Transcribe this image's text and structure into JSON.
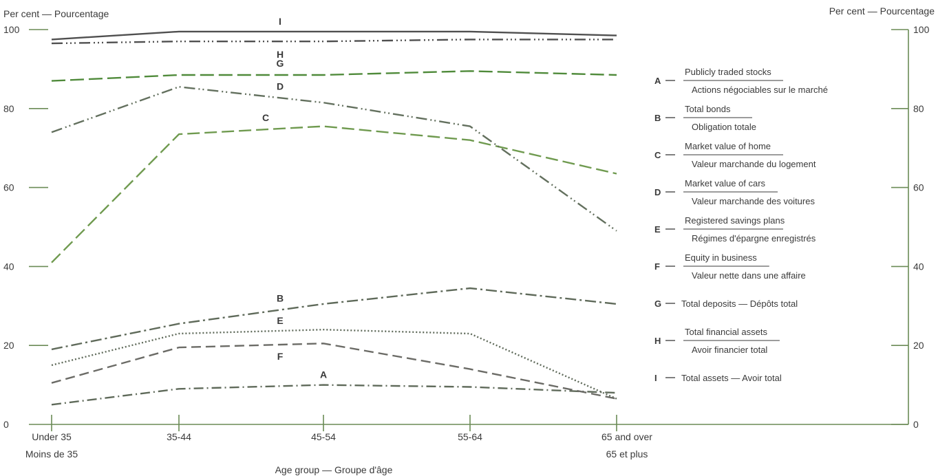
{
  "chart_data": {
    "type": "line",
    "ylabel_left": "Per cent — Pourcentage",
    "ylabel_right": "Per cent — Pourcentage",
    "xlabel": "Age group — Groupe d'âge",
    "categories": [
      {
        "line1": "Under 35",
        "line2": "Moins de 35"
      },
      {
        "line1": "35-44",
        "line2": ""
      },
      {
        "line1": "45-54",
        "line2": ""
      },
      {
        "line1": "55-64",
        "line2": ""
      },
      {
        "line1": "65 and over",
        "line2": "65 et plus"
      }
    ],
    "ylim": [
      0,
      100
    ],
    "yticks": [
      0,
      20,
      40,
      60,
      80,
      100
    ],
    "grid": false,
    "series": [
      {
        "key": "A",
        "values": [
          5,
          9,
          10,
          9.5,
          8
        ],
        "color": "#5f6a5a",
        "dash": "14,5,2,5",
        "label_index": 2,
        "label_offset": -10
      },
      {
        "key": "B",
        "values": [
          19,
          25.5,
          30.5,
          34.5,
          30.5
        ],
        "color": "#5f6a5a",
        "dash": "16,5,3,5",
        "label_index": 1.7,
        "label_offset": -12
      },
      {
        "key": "C",
        "values": [
          41,
          73.5,
          75.5,
          72,
          63.5
        ],
        "color": "#6f9a4f",
        "dash": "18,7",
        "label_index": 1.6,
        "label_offset": -12
      },
      {
        "key": "D",
        "values": [
          74,
          85.5,
          81.5,
          75.5,
          49
        ],
        "color": "#63705e",
        "dash": "16,5,2,4,2,5",
        "label_index": 1.7,
        "label_offset": -12
      },
      {
        "key": "E",
        "values": [
          15,
          23,
          24,
          23,
          6.5
        ],
        "color": "#5f6a5a",
        "dash": "2,3",
        "label_index": 1.7,
        "label_offset": -10
      },
      {
        "key": "F",
        "values": [
          10.5,
          19.5,
          20.5,
          14,
          6.5
        ],
        "color": "#6b6b66",
        "dash": "14,7",
        "label_index": 1.7,
        "label_offset": 22
      },
      {
        "key": "G",
        "values": [
          87,
          88.5,
          88.5,
          89.5,
          88.5
        ],
        "color": "#4f8a3a",
        "dash": "20,7",
        "label_index": 1.7,
        "label_offset": -12
      },
      {
        "key": "H",
        "values": [
          96.5,
          97,
          97,
          97.5,
          97.5
        ],
        "color": "#4f4f4f",
        "dash": "16,5,2,4,2,4,2,5",
        "label_index": 1.7,
        "label_offset": 24
      },
      {
        "key": "I",
        "values": [
          97.5,
          99.5,
          99.5,
          99.5,
          98.5
        ],
        "color": "#4f4f4f",
        "dash": "",
        "label_index": 1.7,
        "label_offset": -10
      }
    ],
    "legend": [
      {
        "letter": "A",
        "line1": "Publicly traded stocks",
        "line2": "Actions négociables sur le marché"
      },
      {
        "letter": "B",
        "line1": "Total bonds",
        "line2": "Obligation totale"
      },
      {
        "letter": "C",
        "line1": "Market value of home",
        "line2": "Valeur marchande du logement"
      },
      {
        "letter": "D",
        "line1": "Market value of cars",
        "line2": "Valeur marchande des voitures"
      },
      {
        "letter": "E",
        "line1": "Registered savings plans",
        "line2": "Régimes d'épargne enregistrés"
      },
      {
        "letter": "F",
        "line1": "Equity in business",
        "line2": "Valeur nette dans une affaire"
      },
      {
        "letter": "G",
        "line1": "Total deposits — Dépôts total",
        "line2": ""
      },
      {
        "letter": "H",
        "line1": "Total financial assets",
        "line2": "Avoir financier total"
      },
      {
        "letter": "I",
        "line1": "Total assets — Avoir total",
        "line2": ""
      }
    ],
    "legend_position": "right"
  }
}
